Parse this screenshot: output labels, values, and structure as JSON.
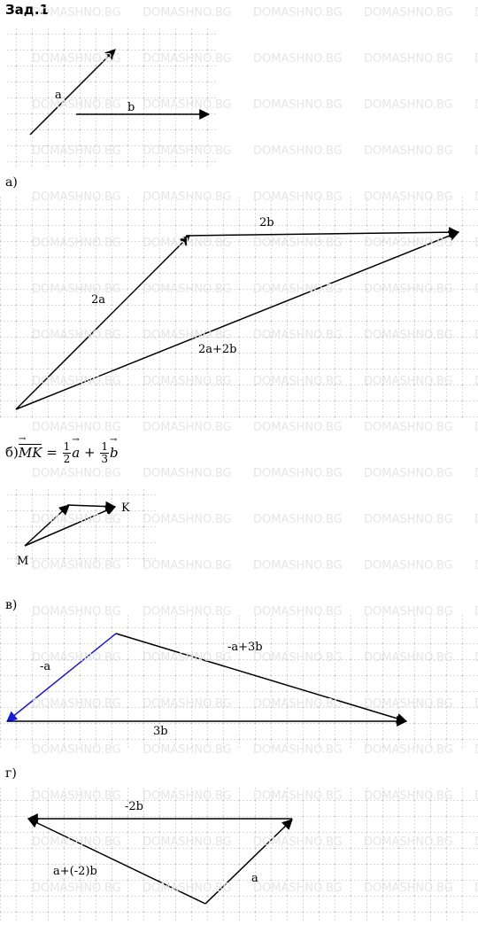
{
  "title": "Зад.1",
  "watermark": "DOMASHNO.BG",
  "parts": {
    "a": "а)",
    "b_prefix": "б)",
    "v": "в)",
    "g": "г)"
  },
  "given": {
    "a": "a",
    "b": "b"
  },
  "part_a": {
    "side1": "2a",
    "side2": "2b",
    "result": "2a+2b"
  },
  "part_b": {
    "formula": {
      "lhs": "MK",
      "eq": "=",
      "n1": "1",
      "d1": "2",
      "v1": "a",
      "plus": "+",
      "n2": "1",
      "d2": "3",
      "v2": "b"
    },
    "start": "M",
    "end": "K"
  },
  "part_v": {
    "side1": "-a",
    "side2": "-a+3b",
    "base": "3b"
  },
  "part_g": {
    "top": "-2b",
    "left": "a+(-2)b",
    "right": "a"
  },
  "colors": {
    "vector": "#000000",
    "blue_vector": "#1a1ad6",
    "grid": "#b0b0b0",
    "watermark": "#e6e6e6"
  }
}
